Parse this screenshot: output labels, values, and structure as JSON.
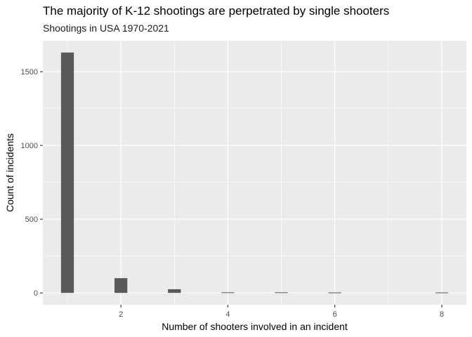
{
  "chart_data": {
    "type": "bar",
    "title": "The majority of K-12 shootings are perpetrated by single shooters",
    "subtitle": "Shootings in USA 1970-2021",
    "xlabel": "Number of shooters involved in an incident",
    "ylabel": "Count of incidents",
    "x": [
      1,
      2,
      3,
      4,
      5,
      6,
      8
    ],
    "values": [
      1630,
      100,
      25,
      4,
      4,
      3,
      3
    ],
    "xlim": [
      0.54,
      8.46
    ],
    "ylim": [
      -80,
      1710
    ],
    "x_ticks": [
      2,
      4,
      6,
      8
    ],
    "y_ticks": [
      0,
      500,
      1000,
      1500
    ],
    "x_tick_labels": [
      "2",
      "4",
      "6",
      "8"
    ],
    "y_tick_labels": [
      "0",
      "500",
      "1000",
      "1500"
    ],
    "grid": true,
    "legend": "none"
  },
  "colors": {
    "panel_background": "#ebebeb",
    "gridline": "#ffffff",
    "bar_fill": "#595959",
    "axis_text": "#4d4d4d"
  }
}
